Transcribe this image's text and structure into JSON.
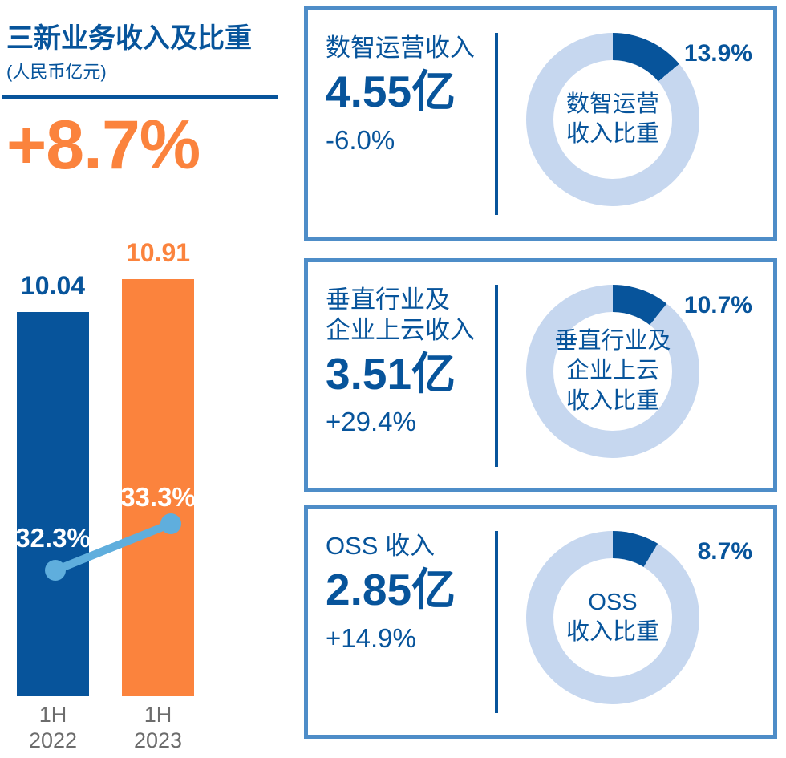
{
  "panel": {
    "title": "三新业务收入及比重",
    "subtitle": "(人民币亿元)",
    "growth": "+8.7%"
  },
  "chart_data": {
    "type": "bar",
    "title": "三新业务收入及比重",
    "unit": "人民币亿元",
    "categories": [
      "1H 2022",
      "1H 2023"
    ],
    "series": [
      {
        "name": "三新业务收入",
        "type": "bar",
        "values": [
          10.04,
          10.91
        ],
        "colors": [
          "#07549B",
          "#FB833D"
        ]
      },
      {
        "name": "三新业务收入比重",
        "type": "line",
        "values": [
          32.3,
          33.3
        ],
        "unit": "%",
        "color": "#5FAEDD"
      }
    ],
    "bar_labels": [
      "10.04",
      "10.91"
    ],
    "share_labels": [
      "32.3%",
      "33.3%"
    ],
    "growth_label": "+8.7%",
    "xlabels": [
      {
        "line1": "1H",
        "line2": "2022"
      },
      {
        "line1": "1H",
        "line2": "2023"
      }
    ],
    "donuts": [
      {
        "label": "数智运营收入比重",
        "value_pct": 13.9
      },
      {
        "label": "垂直行业及企业上云收入比重",
        "value_pct": 10.7
      },
      {
        "label": "OSS收入比重",
        "value_pct": 8.7
      }
    ]
  },
  "cards": [
    {
      "heading_lines": [
        "数智运营收入"
      ],
      "amount": "4.55亿",
      "change": "-6.0%",
      "share_pct": 13.9,
      "share_label": "13.9%",
      "center_lines": [
        "数智运营",
        "收入比重"
      ]
    },
    {
      "heading_lines": [
        "垂直行业及",
        "企业上云收入"
      ],
      "amount": "3.51亿",
      "change": "+29.4%",
      "share_pct": 10.7,
      "share_label": "10.7%",
      "center_lines": [
        "垂直行业及",
        "企业上云",
        "收入比重"
      ]
    },
    {
      "heading_lines": [
        "OSS 收入"
      ],
      "amount": "2.85亿",
      "change": "+14.9%",
      "share_pct": 8.7,
      "share_label": "8.7%",
      "center_lines": [
        "OSS",
        "收入比重"
      ]
    }
  ],
  "colors": {
    "deep_blue": "#07549B",
    "orange": "#FB833D",
    "ring_light": "#C6D7EF",
    "card_border": "#4E8DC8",
    "trend_line": "#5FAEDD",
    "axis_label_gray": "#6C6C6C",
    "bar_label_white": "#FFFFFF"
  }
}
